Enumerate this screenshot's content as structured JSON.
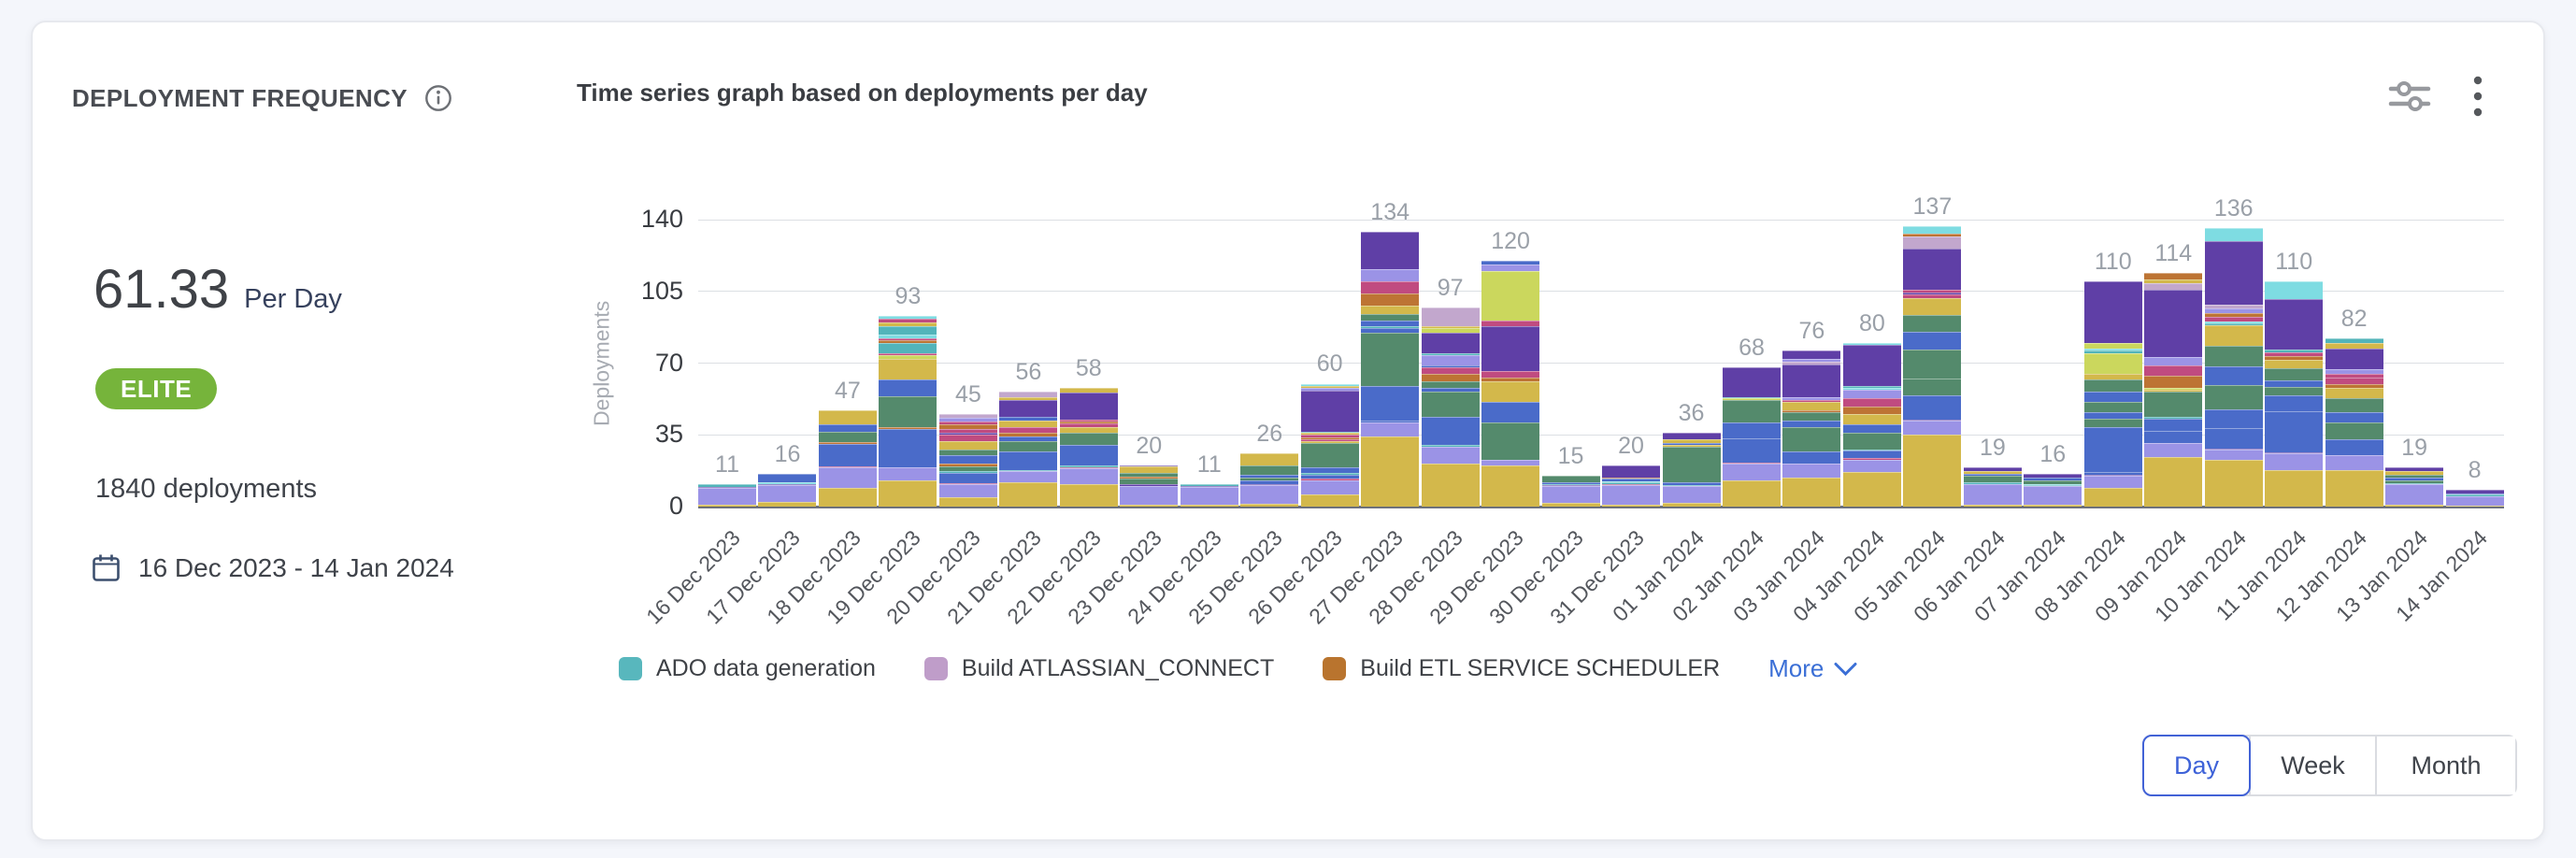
{
  "header": {
    "title": "DEPLOYMENT FREQUENCY",
    "chart_title": "Time series graph based on deployments per day"
  },
  "stats": {
    "rate": "61.33",
    "rate_unit": "Per Day",
    "badge": "ELITE",
    "badge_color": "#76b43b",
    "total_deployments": "1840 deployments",
    "date_range": "16 Dec 2023 - 14 Jan 2024"
  },
  "legend": {
    "items": [
      {
        "label": "ADO data generation",
        "color": "#58b7bd"
      },
      {
        "label": "Build ATLASSIAN_CONNECT",
        "color": "#bf9dc9"
      },
      {
        "label": "Build ETL SERVICE SCHEDULER",
        "color": "#b9742e"
      }
    ],
    "more_label": "More"
  },
  "granularity": {
    "options": [
      "Day",
      "Week",
      "Month"
    ],
    "selected": "Day"
  },
  "colors": {
    "accent_blue": "#3b6fd6",
    "selected_control_blue": "#4262d6",
    "badge_green": "#76b43b",
    "value_label_gray": "#9aa0a8",
    "axis_text": "#393c41",
    "axis_line": "#6d717c"
  },
  "chart_data": {
    "type": "bar",
    "stacked": true,
    "title": "Time series graph based on deployments per day",
    "xlabel": "",
    "ylabel": "Deployments",
    "ylim": [
      0,
      140
    ],
    "yticks": [
      0,
      35,
      70,
      105,
      140
    ],
    "grid": true,
    "legend_position": "bottom",
    "categories": [
      "16 Dec 2023",
      "17 Dec 2023",
      "18 Dec 2023",
      "19 Dec 2023",
      "20 Dec 2023",
      "21 Dec 2023",
      "22 Dec 2023",
      "23 Dec 2023",
      "24 Dec 2023",
      "25 Dec 2023",
      "26 Dec 2023",
      "27 Dec 2023",
      "28 Dec 2023",
      "29 Dec 2023",
      "30 Dec 2023",
      "31 Dec 2023",
      "01 Jan 2024",
      "02 Jan 2024",
      "03 Jan 2024",
      "04 Jan 2024",
      "05 Jan 2024",
      "06 Jan 2024",
      "07 Jan 2024",
      "08 Jan 2024",
      "09 Jan 2024",
      "10 Jan 2024",
      "11 Jan 2024",
      "12 Jan 2024",
      "13 Jan 2024",
      "14 Jan 2024"
    ],
    "totals": [
      11,
      16,
      47,
      93,
      45,
      56,
      58,
      20,
      11,
      26,
      60,
      134,
      97,
      120,
      15,
      20,
      36,
      68,
      76,
      80,
      137,
      19,
      16,
      110,
      114,
      136,
      110,
      82,
      19,
      8
    ],
    "palette": {
      "Y": "#d3b84b",
      "P": "#9b93e6",
      "B": "#4a6bc9",
      "G": "#548a6c",
      "V": "#5f3fa6",
      "M": "#c04b80",
      "O": "#bd7434",
      "T": "#52b4ba",
      "L": "#cbd75d",
      "U": "#c2a7cd",
      "C": "#7edce2"
    },
    "bars": [
      [
        [
          "Y",
          1
        ],
        [
          "P",
          8
        ],
        [
          "V",
          0.5
        ],
        [
          "T",
          1.5
        ]
      ],
      [
        [
          "Y",
          2.5
        ],
        [
          "P",
          8
        ],
        [
          "V",
          0.5
        ],
        [
          "C",
          1
        ],
        [
          "B",
          4
        ]
      ],
      [
        [
          "Y",
          9
        ],
        [
          "P",
          10
        ],
        [
          "M",
          0.5
        ],
        [
          "B",
          11
        ],
        [
          "O",
          1
        ],
        [
          "G",
          5
        ],
        [
          "B",
          3.5
        ],
        [
          "Y",
          7
        ]
      ],
      [
        [
          "Y",
          13
        ],
        [
          "P",
          6
        ],
        [
          "B",
          19
        ],
        [
          "O",
          1
        ],
        [
          "G",
          15
        ],
        [
          "B",
          8
        ],
        [
          "Y",
          10
        ],
        [
          "L",
          2
        ],
        [
          "M",
          1
        ],
        [
          "T",
          5
        ],
        [
          "O",
          1
        ],
        [
          "M",
          1
        ],
        [
          "C",
          2
        ],
        [
          "T",
          4
        ],
        [
          "Y",
          2
        ],
        [
          "M",
          1.5
        ],
        [
          "C",
          1.5
        ]
      ],
      [
        [
          "Y",
          4.5
        ],
        [
          "P",
          6.5
        ],
        [
          "M",
          0.5
        ],
        [
          "B",
          5
        ],
        [
          "T",
          1
        ],
        [
          "G",
          2
        ],
        [
          "O",
          1.5
        ],
        [
          "B",
          4
        ],
        [
          "G",
          3
        ],
        [
          "Y",
          4
        ],
        [
          "M",
          3
        ],
        [
          "V",
          1
        ],
        [
          "M",
          2
        ],
        [
          "O",
          2
        ],
        [
          "M",
          1.5
        ],
        [
          "P",
          2
        ],
        [
          "U",
          1.5
        ]
      ],
      [
        [
          "Y",
          12
        ],
        [
          "P",
          5.5
        ],
        [
          "T",
          0.5
        ],
        [
          "B",
          9
        ],
        [
          "G",
          5
        ],
        [
          "B",
          2
        ],
        [
          "O",
          2
        ],
        [
          "M",
          3
        ],
        [
          "Y",
          3
        ],
        [
          "B",
          2
        ],
        [
          "V",
          8
        ],
        [
          "Y",
          1.5
        ],
        [
          "U",
          2.5
        ]
      ],
      [
        [
          "Y",
          11
        ],
        [
          "P",
          7.5
        ],
        [
          "M",
          0.5
        ],
        [
          "T",
          1
        ],
        [
          "B",
          10
        ],
        [
          "G",
          6
        ],
        [
          "Y",
          3
        ],
        [
          "M",
          1.5
        ],
        [
          "O",
          1
        ],
        [
          "M",
          1
        ],
        [
          "V",
          13
        ],
        [
          "Y",
          2.5
        ]
      ],
      [
        [
          "Y",
          1
        ],
        [
          "P",
          9
        ],
        [
          "V",
          1
        ],
        [
          "G",
          2.5
        ],
        [
          "O",
          1
        ],
        [
          "G",
          2
        ],
        [
          "Y",
          3
        ],
        [
          "V",
          0.5
        ]
      ],
      [
        [
          "Y",
          1
        ],
        [
          "P",
          8.5
        ],
        [
          "V",
          0.5
        ],
        [
          "T",
          1
        ]
      ],
      [
        [
          "Y",
          1.5
        ],
        [
          "P",
          9
        ],
        [
          "V",
          0.5
        ],
        [
          "B",
          2
        ],
        [
          "G",
          1
        ],
        [
          "B",
          1.5
        ],
        [
          "G",
          4.5
        ],
        [
          "Y",
          6
        ]
      ],
      [
        [
          "Y",
          6
        ],
        [
          "P",
          7
        ],
        [
          "M",
          0.5
        ],
        [
          "B",
          2
        ],
        [
          "T",
          1
        ],
        [
          "B",
          2.5
        ],
        [
          "G",
          12
        ],
        [
          "Y",
          1
        ],
        [
          "M",
          1
        ],
        [
          "O",
          1
        ],
        [
          "M",
          1
        ],
        [
          "Y",
          1
        ],
        [
          "T",
          0.5
        ],
        [
          "V",
          20
        ],
        [
          "P",
          1.5
        ],
        [
          "Y",
          1
        ],
        [
          "C",
          1
        ]
      ],
      [
        [
          "Y",
          34
        ],
        [
          "P",
          7
        ],
        [
          "B",
          1
        ],
        [
          "B",
          17
        ],
        [
          "G",
          26
        ],
        [
          "B",
          2
        ],
        [
          "T",
          1
        ],
        [
          "B",
          3
        ],
        [
          "G",
          3
        ],
        [
          "Y",
          4
        ],
        [
          "O",
          6
        ],
        [
          "M",
          6
        ],
        [
          "P",
          6
        ],
        [
          "V",
          18
        ]
      ],
      [
        [
          "Y",
          21
        ],
        [
          "P",
          8
        ],
        [
          "T",
          1
        ],
        [
          "B",
          14
        ],
        [
          "G",
          12
        ],
        [
          "B",
          2
        ],
        [
          "G",
          3
        ],
        [
          "O",
          4
        ],
        [
          "M",
          3
        ],
        [
          "B",
          1
        ],
        [
          "P",
          5
        ],
        [
          "T",
          1
        ],
        [
          "V",
          10
        ],
        [
          "L",
          2
        ],
        [
          "Y",
          1
        ],
        [
          "U",
          9
        ]
      ],
      [
        [
          "Y",
          20
        ],
        [
          "P",
          3
        ],
        [
          "G",
          18
        ],
        [
          "B",
          10
        ],
        [
          "Y",
          10
        ],
        [
          "O",
          2
        ],
        [
          "M",
          3
        ],
        [
          "V",
          22
        ],
        [
          "M",
          3
        ],
        [
          "L",
          24
        ],
        [
          "P",
          3
        ],
        [
          "B",
          2
        ]
      ],
      [
        [
          "Y",
          2
        ],
        [
          "P",
          8
        ],
        [
          "V",
          0.5
        ],
        [
          "T",
          0.5
        ],
        [
          "B",
          1
        ],
        [
          "G",
          3
        ]
      ],
      [
        [
          "Y",
          1
        ],
        [
          "P",
          9.5
        ],
        [
          "M",
          0.5
        ],
        [
          "T",
          1
        ],
        [
          "C",
          0.5
        ],
        [
          "B",
          1
        ],
        [
          "O",
          0.5
        ],
        [
          "V",
          6
        ]
      ],
      [
        [
          "Y",
          2
        ],
        [
          "P",
          8
        ],
        [
          "T",
          0.5
        ],
        [
          "B",
          1.5
        ],
        [
          "G",
          17
        ],
        [
          "Y",
          1
        ],
        [
          "B",
          1
        ],
        [
          "Y",
          2
        ],
        [
          "V",
          3
        ]
      ],
      [
        [
          "Y",
          13
        ],
        [
          "P",
          8
        ],
        [
          "M",
          0.5
        ],
        [
          "B",
          12
        ],
        [
          "B",
          7.5
        ],
        [
          "G",
          11
        ],
        [
          "L",
          1
        ],
        [
          "T",
          0.5
        ],
        [
          "V",
          14.5
        ]
      ],
      [
        [
          "Y",
          14
        ],
        [
          "P",
          7
        ],
        [
          "B",
          6
        ],
        [
          "G",
          12
        ],
        [
          "B",
          3
        ],
        [
          "G",
          4
        ],
        [
          "O",
          1
        ],
        [
          "Y",
          4
        ],
        [
          "M",
          1
        ],
        [
          "P",
          1.5
        ],
        [
          "V",
          16
        ],
        [
          "U",
          1
        ],
        [
          "P",
          1.5
        ],
        [
          "V",
          4
        ]
      ],
      [
        [
          "Y",
          17
        ],
        [
          "P",
          6
        ],
        [
          "M",
          0.5
        ],
        [
          "B",
          4
        ],
        [
          "T",
          0.5
        ],
        [
          "G",
          8
        ],
        [
          "B",
          4
        ],
        [
          "Y",
          5
        ],
        [
          "O",
          4
        ],
        [
          "M",
          4
        ],
        [
          "P",
          4
        ],
        [
          "C",
          1
        ],
        [
          "T",
          1
        ],
        [
          "V",
          20
        ],
        [
          "C",
          1
        ]
      ],
      [
        [
          "Y",
          35
        ],
        [
          "P",
          7
        ],
        [
          "V",
          0.5
        ],
        [
          "B",
          12
        ],
        [
          "G",
          8
        ],
        [
          "G",
          14
        ],
        [
          "B",
          9
        ],
        [
          "G",
          8
        ],
        [
          "Y",
          8
        ],
        [
          "M",
          2
        ],
        [
          "V",
          1
        ],
        [
          "M",
          1.5
        ],
        [
          "V",
          20
        ],
        [
          "U",
          6
        ],
        [
          "O",
          1
        ],
        [
          "C",
          4
        ]
      ],
      [
        [
          "Y",
          1
        ],
        [
          "P",
          10
        ],
        [
          "T",
          1
        ],
        [
          "G",
          3
        ],
        [
          "B",
          1
        ],
        [
          "Y",
          1.5
        ],
        [
          "V",
          1.5
        ]
      ],
      [
        [
          "Y",
          1
        ],
        [
          "P",
          9
        ],
        [
          "T",
          0.5
        ],
        [
          "C",
          0.5
        ],
        [
          "G",
          2
        ],
        [
          "B",
          1
        ],
        [
          "V",
          2
        ]
      ],
      [
        [
          "Y",
          9
        ],
        [
          "P",
          6
        ],
        [
          "V",
          0.5
        ],
        [
          "B",
          1.5
        ],
        [
          "B",
          22
        ],
        [
          "G",
          4
        ],
        [
          "B",
          3
        ],
        [
          "G",
          5
        ],
        [
          "B",
          5
        ],
        [
          "G",
          6
        ],
        [
          "Y",
          3
        ],
        [
          "L",
          10
        ],
        [
          "T",
          1
        ],
        [
          "C",
          1
        ],
        [
          "L",
          3
        ],
        [
          "V",
          30
        ]
      ],
      [
        [
          "Y",
          24
        ],
        [
          "P",
          7
        ],
        [
          "B",
          6
        ],
        [
          "B",
          6
        ],
        [
          "T",
          1
        ],
        [
          "G",
          12
        ],
        [
          "Y",
          1
        ],
        [
          "L",
          1
        ],
        [
          "O",
          6
        ],
        [
          "M",
          5
        ],
        [
          "P",
          4
        ],
        [
          "V",
          33
        ],
        [
          "U",
          3
        ],
        [
          "Y",
          2
        ],
        [
          "O",
          3
        ]
      ],
      [
        [
          "Y",
          23
        ],
        [
          "P",
          5
        ],
        [
          "V",
          0.5
        ],
        [
          "B",
          10
        ],
        [
          "B",
          9
        ],
        [
          "G",
          12
        ],
        [
          "B",
          9
        ],
        [
          "G",
          10
        ],
        [
          "Y",
          10
        ],
        [
          "T",
          1
        ],
        [
          "C",
          1
        ],
        [
          "M",
          2
        ],
        [
          "O",
          2
        ],
        [
          "P",
          2
        ],
        [
          "U",
          2
        ],
        [
          "V",
          31
        ],
        [
          "C",
          6.5
        ]
      ],
      [
        [
          "Y",
          18
        ],
        [
          "P",
          8
        ],
        [
          "V",
          0.5
        ],
        [
          "B",
          20
        ],
        [
          "B",
          8
        ],
        [
          "G",
          4
        ],
        [
          "B",
          3
        ],
        [
          "G",
          6
        ],
        [
          "Y",
          4
        ],
        [
          "O",
          2
        ],
        [
          "M",
          2
        ],
        [
          "T",
          1
        ],
        [
          "V",
          25
        ],
        [
          "C",
          8.5
        ]
      ],
      [
        [
          "Y",
          18
        ],
        [
          "P",
          7
        ],
        [
          "B",
          8
        ],
        [
          "G",
          8
        ],
        [
          "B",
          5
        ],
        [
          "G",
          7
        ],
        [
          "Y",
          5
        ],
        [
          "O",
          2
        ],
        [
          "M",
          3
        ],
        [
          "M",
          2
        ],
        [
          "P",
          2
        ],
        [
          "V",
          10
        ],
        [
          "Y",
          3
        ],
        [
          "T",
          2
        ]
      ],
      [
        [
          "Y",
          1
        ],
        [
          "P",
          10
        ],
        [
          "T",
          0.5
        ],
        [
          "G",
          1.5
        ],
        [
          "B",
          1
        ],
        [
          "G",
          1.5
        ],
        [
          "Y",
          2
        ],
        [
          "V",
          1.5
        ]
      ],
      [
        [
          "Y",
          0.5
        ],
        [
          "P",
          4.5
        ],
        [
          "T",
          1
        ],
        [
          "B",
          0.5
        ],
        [
          "V",
          1.5
        ]
      ]
    ]
  }
}
